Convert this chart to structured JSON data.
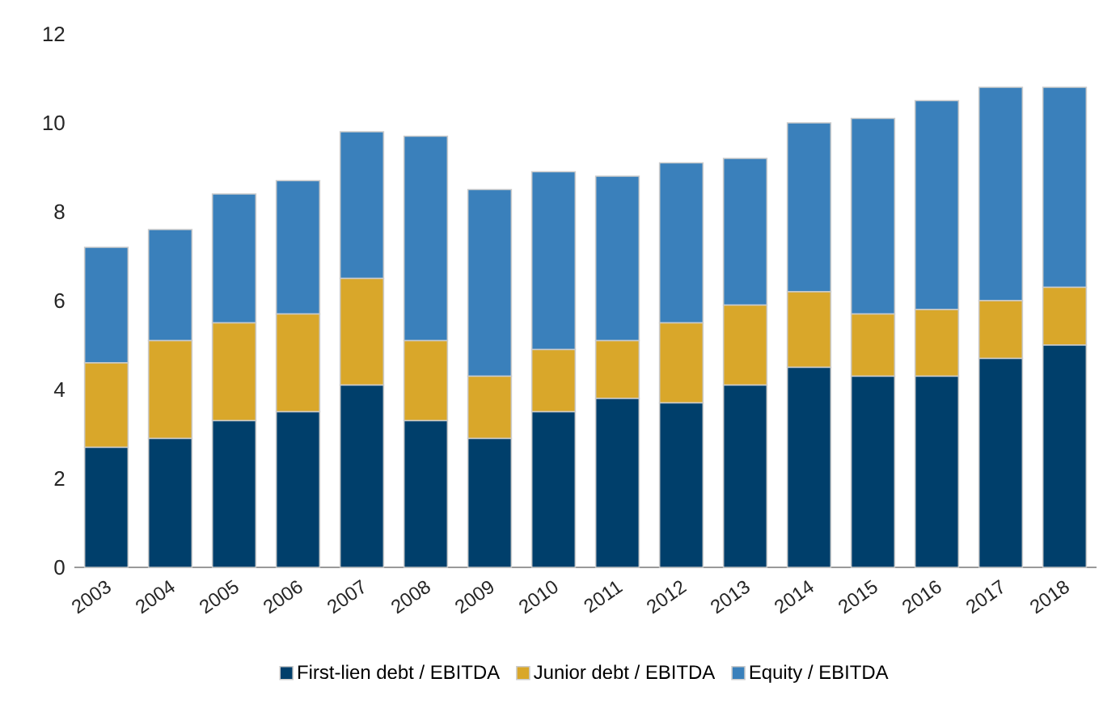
{
  "chart_data": {
    "type": "bar",
    "stacked": true,
    "categories": [
      "2003",
      "2004",
      "2005",
      "2006",
      "2007",
      "2008",
      "2009",
      "2010",
      "2011",
      "2012",
      "2013",
      "2014",
      "2015",
      "2016",
      "2017",
      "2018"
    ],
    "series": [
      {
        "name": "First-lien debt / EBITDA",
        "color": "#003f6b",
        "values": [
          2.7,
          2.9,
          3.3,
          3.5,
          4.1,
          3.3,
          2.9,
          3.5,
          3.8,
          3.7,
          4.1,
          4.5,
          4.3,
          4.3,
          4.7,
          5.0
        ]
      },
      {
        "name": "Junior debt / EBITDA",
        "color": "#d9a72a",
        "values": [
          1.9,
          2.2,
          2.2,
          2.2,
          2.4,
          1.8,
          1.4,
          1.4,
          1.3,
          1.8,
          1.8,
          1.7,
          1.4,
          1.5,
          1.3,
          1.3
        ]
      },
      {
        "name": "Equity / EBITDA",
        "color": "#3a80bb",
        "values": [
          2.6,
          2.5,
          2.9,
          3.0,
          3.3,
          4.6,
          4.2,
          4.0,
          3.7,
          3.6,
          3.3,
          3.8,
          4.4,
          4.7,
          4.8,
          4.5
        ]
      }
    ],
    "ylim": [
      0,
      12
    ],
    "yticks": [
      0,
      2,
      4,
      6,
      8,
      10,
      12
    ],
    "legend": "bottom",
    "grid": false
  }
}
